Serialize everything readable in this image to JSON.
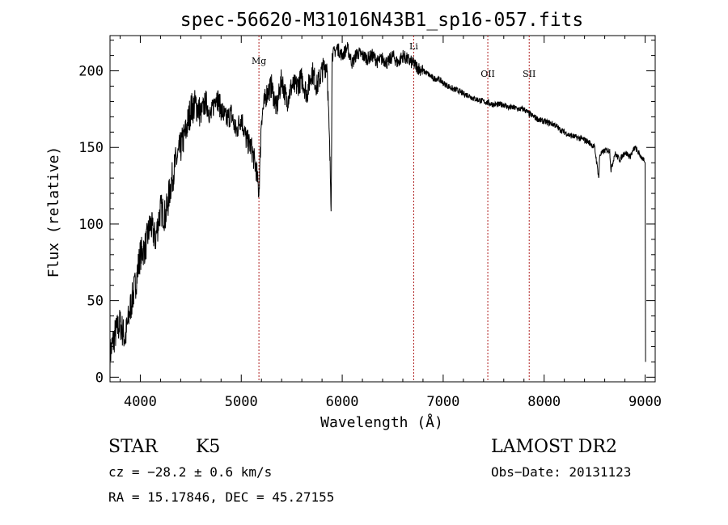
{
  "chart_data": {
    "type": "line",
    "title": "spec-56620-M31016N43B1_sp16-057.fits",
    "xlabel": "Wavelength (Å)",
    "ylabel": "Flux (relative)",
    "xlim": [
      3700,
      9100
    ],
    "ylim": [
      -3,
      223
    ],
    "x_ticks": [
      4000,
      5000,
      6000,
      7000,
      8000,
      9000
    ],
    "y_ticks": [
      0,
      50,
      100,
      150,
      200
    ],
    "grid": false,
    "series": [
      {
        "x": [
          3700,
          3750,
          3800,
          3850,
          3900,
          3950,
          4000,
          4050,
          4100,
          4150,
          4200,
          4250,
          4300,
          4350,
          4400,
          4450,
          4500,
          4550,
          4600,
          4650,
          4700,
          4750,
          4800,
          4850,
          4900,
          4950,
          5000,
          5050,
          5100,
          5150,
          5175,
          5200,
          5250,
          5300,
          5350,
          5400,
          5450,
          5500,
          5550,
          5600,
          5650,
          5700,
          5750,
          5800,
          5850,
          5890,
          5900,
          5950,
          6000,
          6050,
          6100,
          6150,
          6200,
          6250,
          6300,
          6350,
          6400,
          6450,
          6500,
          6550,
          6600,
          6650,
          6700,
          6750,
          6800,
          6850,
          6900,
          6950,
          7000,
          7050,
          7100,
          7150,
          7200,
          7250,
          7300,
          7350,
          7400,
          7450,
          7500,
          7550,
          7600,
          7650,
          7700,
          7750,
          7800,
          7850,
          7900,
          7950,
          8000,
          8050,
          8100,
          8150,
          8200,
          8250,
          8300,
          8350,
          8400,
          8450,
          8500,
          8542,
          8550,
          8600,
          8650,
          8662,
          8700,
          8750,
          8800,
          8850,
          8900,
          8950,
          9000,
          9005
        ],
        "y": [
          15,
          28,
          35,
          25,
          45,
          60,
          80,
          85,
          100,
          90,
          110,
          105,
          125,
          140,
          150,
          160,
          175,
          178,
          172,
          180,
          170,
          185,
          175,
          168,
          172,
          160,
          170,
          155,
          150,
          135,
          120,
          170,
          185,
          190,
          175,
          195,
          180,
          190,
          190,
          195,
          185,
          200,
          190,
          200,
          205,
          115,
          210,
          215,
          210,
          215,
          205,
          212,
          210,
          208,
          210,
          206,
          208,
          205,
          210,
          205,
          210,
          207,
          205,
          202,
          200,
          198,
          195,
          195,
          192,
          190,
          188,
          187,
          185,
          184,
          182,
          181,
          180,
          179,
          178,
          178,
          178,
          176,
          176,
          175,
          175,
          172,
          170,
          168,
          167,
          166,
          165,
          162,
          160,
          158,
          157,
          156,
          155,
          153,
          150,
          130,
          145,
          148,
          148,
          135,
          146,
          142,
          147,
          144,
          150,
          145,
          140,
          10
        ]
      }
    ],
    "line_markers": [
      {
        "label": "Mg",
        "x": 5175
      },
      {
        "label": "Li",
        "x": 6708
      },
      {
        "label": "OII",
        "x": 7442
      },
      {
        "label": "SII",
        "x": 7852
      }
    ]
  },
  "info": {
    "object_type": "STAR",
    "subclass": "K5",
    "survey": "LAMOST DR2",
    "cz": "cz = −28.2 ± 0.6 km/s",
    "obs_date": "Obs−Date: 20131123",
    "coords": "RA =  15.17846, DEC =  45.27155"
  }
}
